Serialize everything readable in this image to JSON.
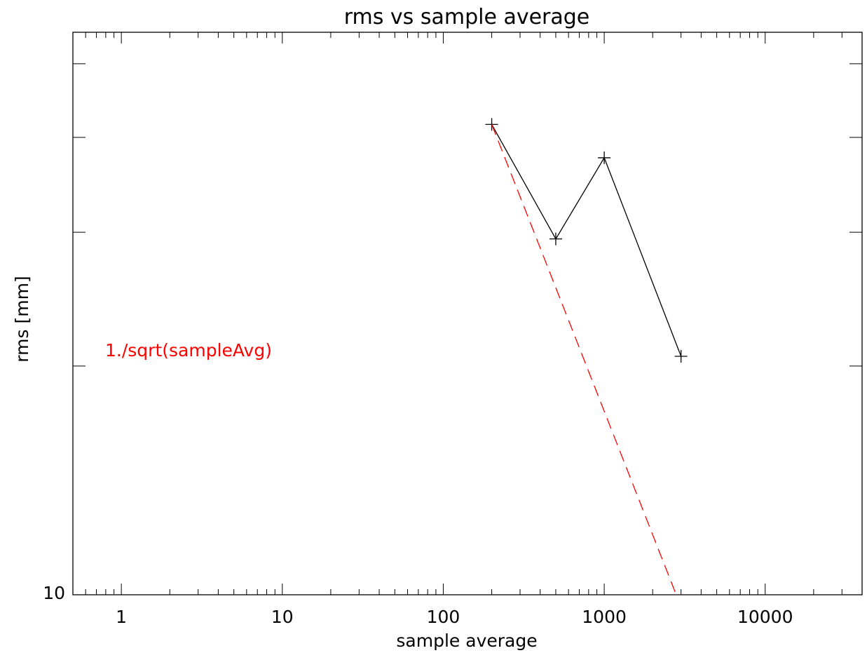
{
  "chart_data": {
    "type": "line",
    "title": "rms vs sample average",
    "xlabel": "sample average",
    "ylabel": "rms [mm]",
    "x_scale": "log",
    "y_scale": "log",
    "xlim": [
      0.5,
      40000
    ],
    "ylim": [
      10,
      55
    ],
    "x_ticks": [
      {
        "value": 1,
        "label": "1"
      },
      {
        "value": 10,
        "label": "10"
      },
      {
        "value": 100,
        "label": "100"
      },
      {
        "value": 1000,
        "label": "1000"
      },
      {
        "value": 10000,
        "label": "10000"
      }
    ],
    "y_ticks": [
      {
        "value": 10,
        "label": "10"
      }
    ],
    "series": [
      {
        "marker": "plus",
        "line": "solid",
        "color": "#000000",
        "x": [
          200,
          500,
          1000,
          3000
        ],
        "y": [
          41.6,
          29.4,
          37.6,
          20.6
        ]
      },
      {
        "name": "1./sqrt(sampleAvg)",
        "marker": "none",
        "line": "dashed",
        "color": "#ff0000",
        "x": [
          200,
          2800
        ],
        "y": [
          41.6,
          10.0
        ]
      }
    ],
    "annotations": [
      {
        "text": "1./sqrt(sampleAvg)",
        "color": "#ff0000"
      }
    ],
    "grid": false
  }
}
